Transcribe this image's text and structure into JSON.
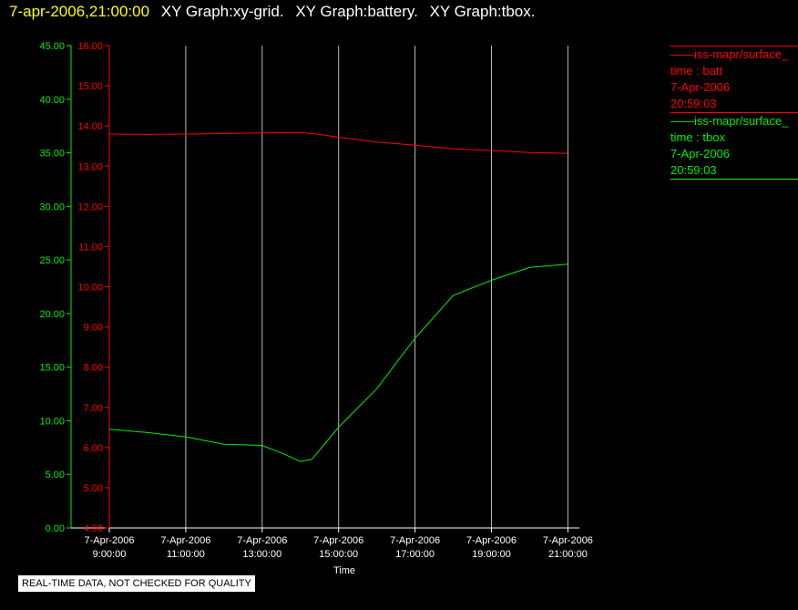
{
  "header": {
    "timestamp": "7-apr-2006,21:00:00",
    "titles": [
      "XY Graph:xy-grid.",
      "XY Graph:battery.",
      "XY Graph:tbox."
    ]
  },
  "notice": "REAL-TIME DATA, NOT CHECKED FOR QUALITY",
  "colors": {
    "batt": "#ff0000",
    "tbox": "#00ee00",
    "grid": "#bbbbbb",
    "axis": "#ffffff"
  },
  "legend": [
    {
      "series": "batt",
      "lines": [
        "——iss-mapr/surface_",
        "time : batt",
        "7-Apr-2006",
        "20:59:03"
      ]
    },
    {
      "series": "tbox",
      "lines": [
        "——iss-mapr/surface_",
        "time : tbox",
        "7-Apr-2006",
        "20:59:03"
      ]
    }
  ],
  "chart_data": {
    "type": "line",
    "xlabel": "Time",
    "x_ticks": [
      {
        "hours": 9,
        "date": "7-Apr-2006",
        "time": "9:00:00"
      },
      {
        "hours": 11,
        "date": "7-Apr-2006",
        "time": "11:00:00"
      },
      {
        "hours": 13,
        "date": "7-Apr-2006",
        "time": "13:00:00"
      },
      {
        "hours": 15,
        "date": "7-Apr-2006",
        "time": "15:00:00"
      },
      {
        "hours": 17,
        "date": "7-Apr-2006",
        "time": "17:00:00"
      },
      {
        "hours": 19,
        "date": "7-Apr-2006",
        "time": "19:00:00"
      },
      {
        "hours": 21,
        "date": "7-Apr-2006",
        "time": "21:00:00"
      }
    ],
    "xlim": [
      9,
      21.3
    ],
    "grid": "vertical",
    "axes": [
      {
        "name": "batt",
        "ylim": [
          4,
          16
        ],
        "ticks": [
          "4.00",
          "5.00",
          "6.00",
          "7.00",
          "8.00",
          "9.00",
          "10.00",
          "11.00",
          "12.00",
          "13.00",
          "14.00",
          "15.00",
          "16.00"
        ]
      },
      {
        "name": "tbox",
        "ylim": [
          0,
          45
        ],
        "ticks": [
          "0.00",
          "5.00",
          "10.00",
          "15.00",
          "20.00",
          "25.00",
          "30.00",
          "35.00",
          "40.00",
          "45.00"
        ]
      }
    ],
    "series": [
      {
        "axis": "batt",
        "points": [
          [
            9,
            13.8
          ],
          [
            10,
            13.79
          ],
          [
            11,
            13.8
          ],
          [
            12,
            13.81
          ],
          [
            13,
            13.83
          ],
          [
            14,
            13.84
          ],
          [
            14.5,
            13.79
          ],
          [
            15,
            13.72
          ],
          [
            16,
            13.6
          ],
          [
            17,
            13.52
          ],
          [
            18,
            13.43
          ],
          [
            19,
            13.39
          ],
          [
            20,
            13.34
          ],
          [
            21,
            13.32
          ]
        ]
      },
      {
        "axis": "tbox",
        "points": [
          [
            9,
            9.2
          ],
          [
            10,
            8.9
          ],
          [
            11,
            8.5
          ],
          [
            12,
            7.8
          ],
          [
            13,
            7.7
          ],
          [
            13.5,
            7.0
          ],
          [
            14,
            6.2
          ],
          [
            14.3,
            6.4
          ],
          [
            15,
            9.4
          ],
          [
            16,
            13.0
          ],
          [
            17,
            17.7
          ],
          [
            18,
            21.7
          ],
          [
            19,
            23.1
          ],
          [
            20,
            24.3
          ],
          [
            21,
            24.6
          ]
        ]
      }
    ]
  }
}
